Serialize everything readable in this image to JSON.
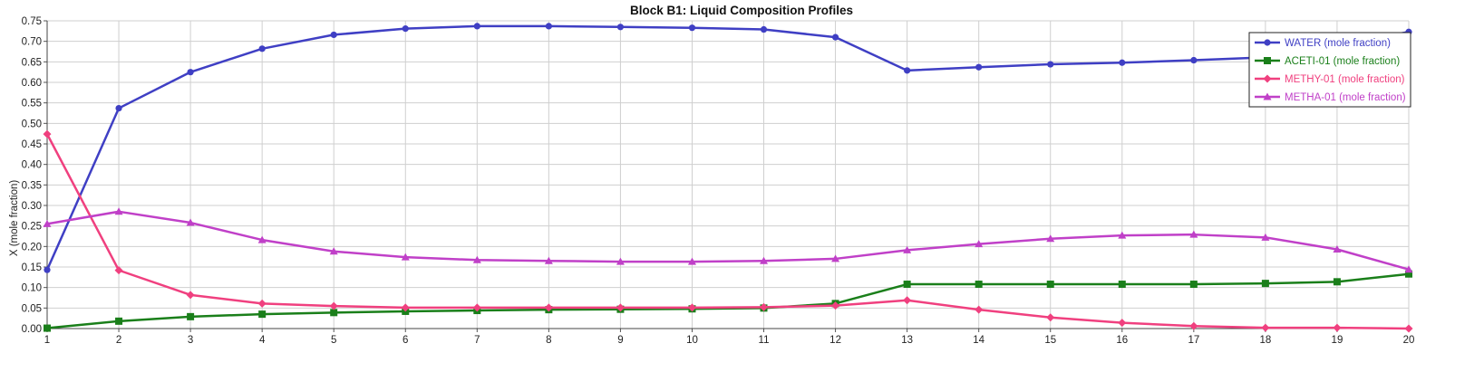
{
  "chart_data": {
    "type": "line",
    "title": "Block B1: Liquid Composition Profiles",
    "xlabel": "",
    "ylabel": "X (mole fraction)",
    "x": [
      1,
      2,
      3,
      4,
      5,
      6,
      7,
      8,
      9,
      10,
      11,
      12,
      13,
      14,
      15,
      16,
      17,
      18,
      19,
      20
    ],
    "x_ticks": [
      "1",
      "2",
      "3",
      "4",
      "5",
      "6",
      "7",
      "8",
      "9",
      "10",
      "11",
      "12",
      "13",
      "14",
      "15",
      "16",
      "17",
      "18",
      "19",
      "20"
    ],
    "ylim": [
      0,
      0.75
    ],
    "y_ticks": [
      "0.00",
      "0.05",
      "0.10",
      "0.15",
      "0.20",
      "0.25",
      "0.30",
      "0.35",
      "0.40",
      "0.45",
      "0.50",
      "0.55",
      "0.60",
      "0.65",
      "0.70",
      "0.75"
    ],
    "grid": true,
    "legend_position": "top-right",
    "series": [
      {
        "name": "WATER (mole fraction)",
        "color": "#3f3fc4",
        "marker": "circle",
        "values": [
          0.143,
          0.537,
          0.625,
          0.682,
          0.716,
          0.731,
          0.737,
          0.737,
          0.735,
          0.733,
          0.729,
          0.71,
          0.629,
          0.637,
          0.644,
          0.648,
          0.654,
          0.661,
          0.69,
          0.723
        ]
      },
      {
        "name": "ACETI-01 (mole fraction)",
        "color": "#1a7f1a",
        "marker": "square",
        "values": [
          0.001,
          0.018,
          0.029,
          0.035,
          0.039,
          0.042,
          0.044,
          0.046,
          0.047,
          0.048,
          0.05,
          0.061,
          0.108,
          0.108,
          0.108,
          0.108,
          0.108,
          0.11,
          0.114,
          0.133
        ]
      },
      {
        "name": "METHY-01 (mole fraction)",
        "color": "#f0407f",
        "marker": "diamond",
        "values": [
          0.474,
          0.142,
          0.082,
          0.061,
          0.055,
          0.051,
          0.051,
          0.051,
          0.051,
          0.051,
          0.052,
          0.056,
          0.069,
          0.046,
          0.027,
          0.014,
          0.006,
          0.002,
          0.002,
          0.0
        ]
      },
      {
        "name": "METHA-01 (mole fraction)",
        "color": "#c040c8",
        "marker": "triangle",
        "values": [
          0.255,
          0.285,
          0.258,
          0.216,
          0.188,
          0.174,
          0.167,
          0.165,
          0.163,
          0.163,
          0.165,
          0.17,
          0.191,
          0.206,
          0.219,
          0.227,
          0.229,
          0.222,
          0.193,
          0.144
        ]
      }
    ]
  }
}
